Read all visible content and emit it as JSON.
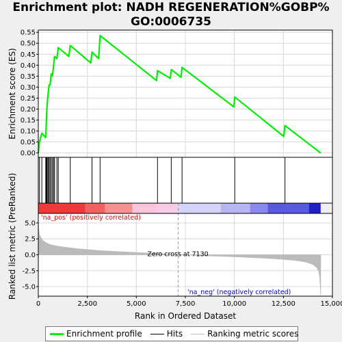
{
  "title_line1": "Enrichment plot: NADH REGENERATION%GOBP%",
  "title_line2": "GO:0006735",
  "colors": {
    "enrichment": "#00ee00",
    "hits": "#000000",
    "metric": "#bbbbbb",
    "pos_text": "#dd0000",
    "neg_text": "#0000cc"
  },
  "chart_data": [
    {
      "type": "line",
      "name": "enrichment-profile",
      "ylabel": "Enrichment score (ES)",
      "xlim": [
        0,
        15000
      ],
      "ylim": [
        -0.02,
        0.56
      ],
      "yticks": [
        "0.00",
        "0.05",
        "0.10",
        "0.15",
        "0.20",
        "0.25",
        "0.30",
        "0.35",
        "0.40",
        "0.45",
        "0.50",
        "0.55"
      ],
      "grid": true,
      "x": [
        0,
        60,
        180,
        380,
        400,
        420,
        450,
        500,
        550,
        600,
        660,
        720,
        780,
        830,
        950,
        1020,
        1560,
        1630,
        2680,
        2740,
        3080,
        3150,
        6030,
        6080,
        6730,
        6780,
        7280,
        7330,
        9970,
        10020,
        12520,
        12580,
        14400
      ],
      "y": [
        0.0,
        0.05,
        0.09,
        0.07,
        0.12,
        0.17,
        0.22,
        0.27,
        0.31,
        0.31,
        0.36,
        0.35,
        0.4,
        0.44,
        0.43,
        0.48,
        0.44,
        0.49,
        0.41,
        0.46,
        0.43,
        0.535,
        0.33,
        0.375,
        0.34,
        0.38,
        0.345,
        0.39,
        0.21,
        0.255,
        0.075,
        0.125,
        0.0
      ]
    },
    {
      "type": "bar",
      "name": "hits",
      "hits_x": [
        60,
        180,
        380,
        400,
        420,
        450,
        500,
        550,
        600,
        660,
        720,
        780,
        830,
        950,
        1020,
        1630,
        2740,
        3150,
        6080,
        6780,
        7330,
        10020,
        12580
      ]
    },
    {
      "type": "area",
      "name": "ranked-list-metric",
      "xlabel": "Rank in Ordered Dataset",
      "ylabel": "Ranked list metric (PreRanked)",
      "xlim": [
        0,
        15000
      ],
      "ylim": [
        -6.5,
        6.5
      ],
      "xticks": [
        "0",
        "2,500",
        "5,000",
        "7,500",
        "10,000",
        "12,500",
        "15,000"
      ],
      "yticks": [
        "5.0",
        "2.5",
        "0.0",
        "-2.5",
        "-5.0"
      ],
      "x": [
        0,
        15,
        40,
        80,
        150,
        250,
        400,
        600,
        900,
        1300,
        2000,
        3000,
        4000,
        5000,
        6000,
        7130,
        8500,
        10000,
        11000,
        12000,
        13000,
        13600,
        14000,
        14200,
        14300,
        14350,
        14380,
        14400
      ],
      "y": [
        5.8,
        4.2,
        3.5,
        3.0,
        2.6,
        2.2,
        1.9,
        1.6,
        1.4,
        1.2,
        0.95,
        0.7,
        0.5,
        0.35,
        0.2,
        0.0,
        -0.15,
        -0.3,
        -0.45,
        -0.6,
        -0.85,
        -1.1,
        -1.5,
        -2.0,
        -2.6,
        -3.4,
        -4.8,
        -6.3
      ],
      "zero_cross": 7130,
      "zero_cross_label": "Zero cross at 7130",
      "pos_label": "'na_pos' (positively correlated)",
      "neg_label": "'na_neg' (negatively correlated)"
    }
  ],
  "legend": {
    "enrichment": "Enrichment profile",
    "hits": "Hits",
    "metric": "Ranking metric scores"
  }
}
